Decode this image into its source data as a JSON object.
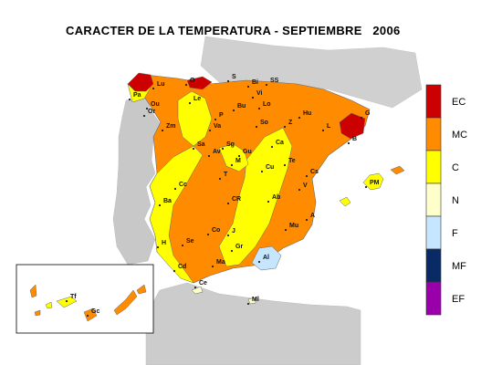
{
  "title": "CARACTER DE LA TEMPERATURA - SEPTIEMBRE   2006",
  "legend": [
    {
      "code": "EC",
      "color": "#cc0000"
    },
    {
      "code": "MC",
      "color": "#ff8c00"
    },
    {
      "code": "C",
      "color": "#ffff00"
    },
    {
      "code": "N",
      "color": "#ffffcc"
    },
    {
      "code": "F",
      "color": "#c6e6ff"
    },
    {
      "code": "MF",
      "color": "#0a2a66"
    },
    {
      "code": "EF",
      "color": "#9900aa"
    }
  ],
  "cities": [
    "S",
    "SS",
    "Bi",
    "Lu",
    "O",
    "Vi",
    "P",
    "Or",
    "Pa",
    "Le",
    "Bu",
    "Lo",
    "Hu",
    "G",
    "Ou",
    "Va",
    "Z",
    "L",
    "So",
    "B",
    "Zm",
    "Sg",
    "Gu",
    "T",
    "Sa",
    "Av",
    "M",
    "Te",
    "Ca",
    "Cs",
    "PM",
    "Cc",
    "Cu",
    "CR",
    "V",
    "Ba",
    "Ab",
    "J",
    "A",
    "Mu",
    "Co",
    "H",
    "Se",
    "Gr",
    "Al",
    "Cd",
    "Ma",
    "Ce",
    "Ml",
    "Tf",
    "Gc"
  ]
}
